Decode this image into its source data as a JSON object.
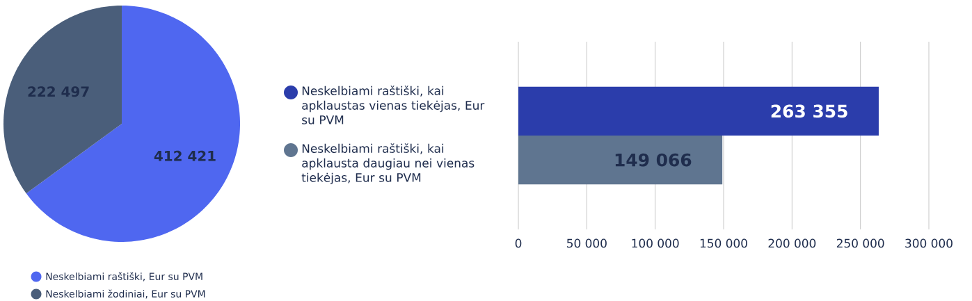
{
  "chart_data": [
    {
      "type": "pie",
      "categories": [
        "Neskelbiami raštiški, Eur su PVM",
        "Neskelbiami žodiniai, Eur su PVM"
      ],
      "values": [
        412421,
        222497
      ],
      "colors": [
        "#4f67f0",
        "#4a5e7a"
      ],
      "value_labels": [
        "412 421",
        "222 497"
      ],
      "legend": "bottom"
    },
    {
      "type": "bar",
      "orientation": "horizontal",
      "categories": [
        null
      ],
      "series": [
        {
          "name": "Neskelbiami raštiški, kai apklaustas vienas tiekėjas, Eur su PVM",
          "color": "#2b3dab",
          "values": [
            263355
          ],
          "value_labels": [
            "263 355"
          ]
        },
        {
          "name": "Neskelbiami raštiški, kai apklausta daugiau nei vienas tiekėjas, Eur su PVM",
          "color": "#5f7590",
          "values": [
            149066
          ],
          "value_labels": [
            "149 066"
          ]
        }
      ],
      "xlim": [
        0,
        300000
      ],
      "xticks": [
        0,
        {
          "value": 50000,
          "label": "50 000"
        },
        {
          "value": 100000,
          "label": "100 000"
        },
        {
          "value": 150000,
          "label": "150 000"
        },
        {
          "value": 200000,
          "label": "200 000"
        },
        {
          "value": 250000,
          "label": "250 000"
        },
        {
          "value": 300000,
          "label": "300 000"
        }
      ],
      "grid": "x",
      "legend": "left"
    }
  ]
}
